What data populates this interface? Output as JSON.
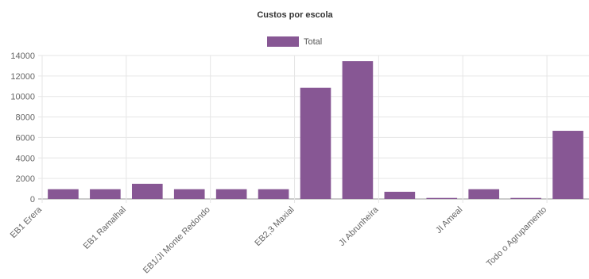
{
  "chart_data": {
    "type": "bar",
    "title": "Custos por escola",
    "xlabel": "",
    "ylabel": "",
    "categories": [
      "EB1 Erera",
      "",
      "EB1 Ramalhal",
      "",
      "EB1/JI Monte Redondo",
      "",
      "EB2,3 Maxial",
      "",
      "JI Abrunheira",
      "",
      "JI Ameal",
      "",
      "Todo o Agrupamento"
    ],
    "series": [
      {
        "name": "Total",
        "values": [
          950,
          950,
          1480,
          950,
          950,
          950,
          10850,
          13450,
          700,
          100,
          950,
          100,
          6650
        ]
      }
    ],
    "ylim": [
      0,
      14000
    ],
    "yticks": [
      0,
      2000,
      4000,
      6000,
      8000,
      10000,
      12000,
      14000
    ],
    "grid": true,
    "legend": "top-center",
    "colors": {
      "bar": "#875794",
      "grid": "#e6e6e6",
      "axis": "#999999"
    }
  }
}
